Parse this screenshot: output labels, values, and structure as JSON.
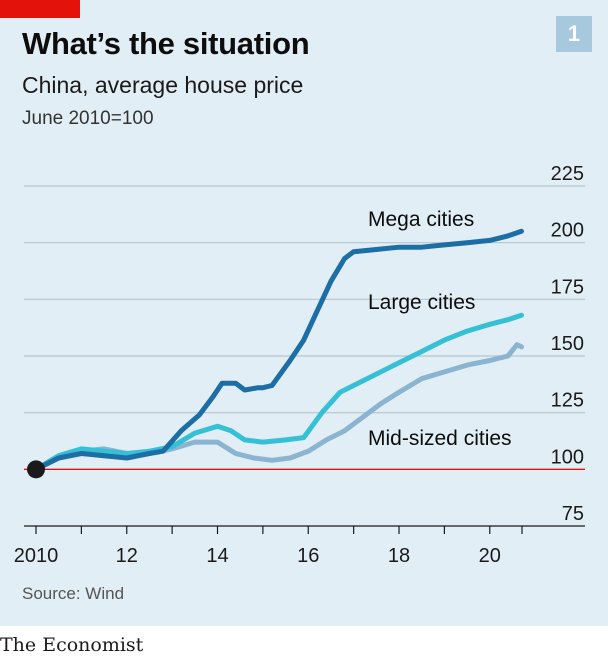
{
  "header": {
    "chart_number": "1",
    "title": "What’s the situation",
    "subtitle": "China, average house price",
    "index_note": "June 2010=100"
  },
  "footer": {
    "source": "Source: Wind",
    "brand": "The Economist"
  },
  "colors": {
    "panel": "#e1eef5",
    "accent_red": "#e3120b",
    "mega": "#1c6ea4",
    "large": "#35c0d6",
    "mid": "#8ab4cf",
    "grid": "#b7c4cc",
    "baseline": "#e3120b"
  },
  "chart_data": {
    "type": "line",
    "title": "What’s the situation",
    "subtitle": "China, average house price",
    "ylabel": "June 2010=100",
    "xlabel": "",
    "ylim": [
      75,
      225
    ],
    "xlim": [
      2009.8,
      2020.8
    ],
    "y_ticks": [
      75,
      100,
      125,
      150,
      175,
      200,
      225
    ],
    "x_ticks": [
      {
        "value": 2010,
        "label": "2010"
      },
      {
        "value": 2012,
        "label": "12"
      },
      {
        "value": 2014,
        "label": "14"
      },
      {
        "value": 2016,
        "label": "16"
      },
      {
        "value": 2018,
        "label": "18"
      },
      {
        "value": 2020,
        "label": "20"
      }
    ],
    "baseline": 100,
    "start_point": {
      "x": 2010.0,
      "y": 100
    },
    "grid": true,
    "series": [
      {
        "name": "Mega cities",
        "color": "#1c6ea4",
        "x": [
          2010.0,
          2010.5,
          2011.0,
          2011.5,
          2012.0,
          2012.5,
          2012.8,
          2013.2,
          2013.6,
          2013.9,
          2014.1,
          2014.4,
          2014.6,
          2014.9,
          2015.0,
          2015.2,
          2015.6,
          2015.9,
          2016.2,
          2016.5,
          2016.8,
          2017.0,
          2017.5,
          2018.0,
          2018.5,
          2019.0,
          2019.5,
          2020.0,
          2020.4,
          2020.7
        ],
        "y": [
          100,
          105,
          107,
          106,
          105,
          107,
          108,
          117,
          124,
          132,
          138,
          138,
          135,
          136,
          136,
          137,
          148,
          157,
          170,
          183,
          193,
          196,
          197,
          198,
          198,
          199,
          200,
          201,
          203,
          205
        ]
      },
      {
        "name": "Large cities",
        "color": "#35c0d6",
        "x": [
          2010.0,
          2010.5,
          2011.0,
          2011.5,
          2012.0,
          2012.5,
          2013.0,
          2013.5,
          2014.0,
          2014.3,
          2014.6,
          2015.0,
          2015.5,
          2015.9,
          2016.3,
          2016.7,
          2017.0,
          2017.5,
          2018.0,
          2018.5,
          2019.0,
          2019.5,
          2020.0,
          2020.4,
          2020.7
        ],
        "y": [
          100,
          106,
          109,
          108,
          107,
          108,
          110,
          116,
          119,
          117,
          113,
          112,
          113,
          114,
          125,
          134,
          137,
          142,
          147,
          152,
          157,
          161,
          164,
          166,
          168
        ]
      },
      {
        "name": "Mid-sized cities",
        "color": "#8ab4cf",
        "x": [
          2010.0,
          2010.5,
          2011.0,
          2011.5,
          2012.0,
          2012.5,
          2013.0,
          2013.5,
          2014.0,
          2014.4,
          2014.8,
          2015.2,
          2015.6,
          2016.0,
          2016.4,
          2016.8,
          2017.2,
          2017.6,
          2018.0,
          2018.5,
          2019.0,
          2019.5,
          2020.0,
          2020.4,
          2020.6,
          2020.7
        ],
        "y": [
          100,
          105,
          108,
          109,
          107,
          107,
          109,
          112,
          112,
          107,
          105,
          104,
          105,
          108,
          113,
          117,
          123,
          129,
          134,
          140,
          143,
          146,
          148,
          150,
          155,
          154
        ]
      }
    ],
    "annotations": [
      {
        "text": "Mega cities",
        "series": "Mega cities"
      },
      {
        "text": "Large cities",
        "series": "Large cities"
      },
      {
        "text": "Mid-sized cities",
        "series": "Mid-sized cities"
      }
    ]
  }
}
